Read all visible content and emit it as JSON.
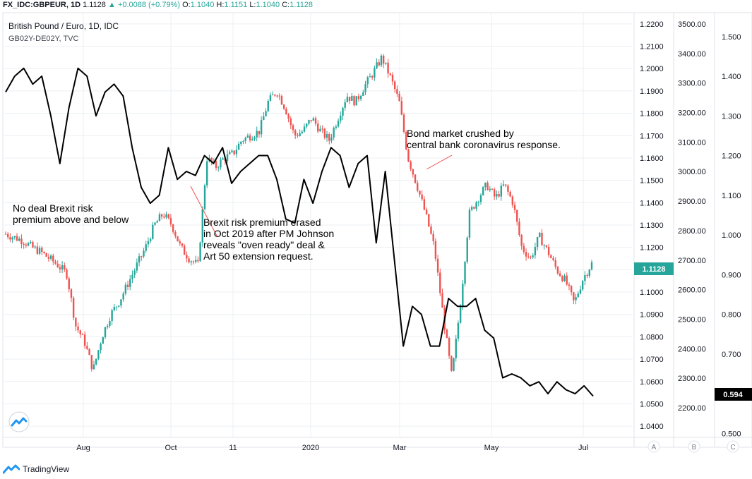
{
  "header": {
    "symbol": "FX_IDC:GBPEUR, 1D",
    "last": "1.1128",
    "change": "+0.0088 (+0.79%)",
    "open_label": "O:",
    "open": "1.1040",
    "high_label": "H:",
    "high": "1.1151",
    "low_label": "L:",
    "low": "1.1040",
    "close_label": "C:",
    "close": "1.1128"
  },
  "legend": {
    "main": "British Pound / Euro, 1D, IDC",
    "overlay": "GB02Y-DE02Y, TVC"
  },
  "axis_labels": {
    "a": "A",
    "b": "B",
    "c": "C"
  },
  "footer": {
    "brand": "TradingView"
  },
  "colors": {
    "up": "#26a69a",
    "down": "#ef5350",
    "line": "#000000",
    "grid": "#eceff2",
    "arrow": "#ef5350"
  },
  "chart_data": {
    "type": "candlestick+line",
    "x_ticks": [
      "Aug",
      "Oct",
      "11",
      "2020",
      "Mar",
      "May",
      "Jul"
    ],
    "primary_axis": {
      "name": "GBPEUR",
      "ylim": [
        1.035,
        1.225
      ],
      "ticks": [
        "1.2200",
        "1.2100",
        "1.2000",
        "1.1900",
        "1.1800",
        "1.1700",
        "1.1600",
        "1.1500",
        "1.1400",
        "1.1300",
        "1.1200",
        "1.1100",
        "1.1000",
        "1.0900",
        "1.0800",
        "1.0700",
        "1.0600",
        "1.0500",
        "1.0400"
      ],
      "last_value": "1.1128"
    },
    "secondary_axis_b": {
      "ticks": [
        "3500.00",
        "3400.00",
        "3300.00",
        "3200.00",
        "3100.00",
        "3000.00",
        "2900.00",
        "2800.00",
        "2700.00",
        "2600.00",
        "2500.00",
        "2400.00",
        "2300.00",
        "2200.00"
      ]
    },
    "overlay_axis_c": {
      "name": "GB02Y-DE02Y",
      "ylim": [
        0.49,
        1.56
      ],
      "ticks": [
        "1.500",
        "1.400",
        "1.300",
        "1.200",
        "1.100",
        "1.000",
        "0.900",
        "0.800",
        "0.700",
        "0.600",
        "0.500"
      ],
      "last_value": "0.594"
    },
    "gbpeur_close": [
      1.126,
      1.1245,
      1.123,
      1.12,
      1.118,
      1.115,
      1.112,
      1.108,
      1.085,
      1.078,
      1.065,
      1.08,
      1.09,
      1.096,
      1.104,
      1.112,
      1.12,
      1.13,
      1.135,
      1.13,
      1.12,
      1.115,
      1.112,
      1.16,
      1.156,
      1.16,
      1.162,
      1.168,
      1.17,
      1.172,
      1.185,
      1.19,
      1.182,
      1.17,
      1.172,
      1.178,
      1.172,
      1.168,
      1.178,
      1.188,
      1.185,
      1.192,
      1.198,
      1.205,
      1.196,
      1.185,
      1.16,
      1.148,
      1.135,
      1.12,
      1.09,
      1.062,
      1.095,
      1.135,
      1.142,
      1.148,
      1.142,
      1.148,
      1.14,
      1.12,
      1.115,
      1.125,
      1.118,
      1.11,
      1.105,
      1.095,
      1.106,
      1.1128
    ],
    "spread_line": [
      1.36,
      1.4,
      1.42,
      1.38,
      1.4,
      1.3,
      1.18,
      1.32,
      1.42,
      1.4,
      1.3,
      1.36,
      1.38,
      1.35,
      1.22,
      1.12,
      1.08,
      1.1,
      1.22,
      1.14,
      1.16,
      1.15,
      1.2,
      1.18,
      1.22,
      1.13,
      1.16,
      1.18,
      1.2,
      1.2,
      1.14,
      1.04,
      1.03,
      1.14,
      1.08,
      1.16,
      1.22,
      1.2,
      1.12,
      1.18,
      1.2,
      0.98,
      1.16,
      0.94,
      0.72,
      0.82,
      0.8,
      0.72,
      0.72,
      0.84,
      0.82,
      0.82,
      0.84,
      0.76,
      0.74,
      0.64,
      0.65,
      0.64,
      0.62,
      0.63,
      0.6,
      0.63,
      0.61,
      0.6,
      0.62,
      0.594
    ],
    "annotations": [
      "No deal Brexit risk\npremium above and below",
      "Brexit risk premium erased\nin Oct 2019 after PM Johnson\nreveals \"oven ready\" deal &\nArt 50 extension request.",
      "Bond market crushed by\ncentral bank coronavirus response."
    ]
  }
}
